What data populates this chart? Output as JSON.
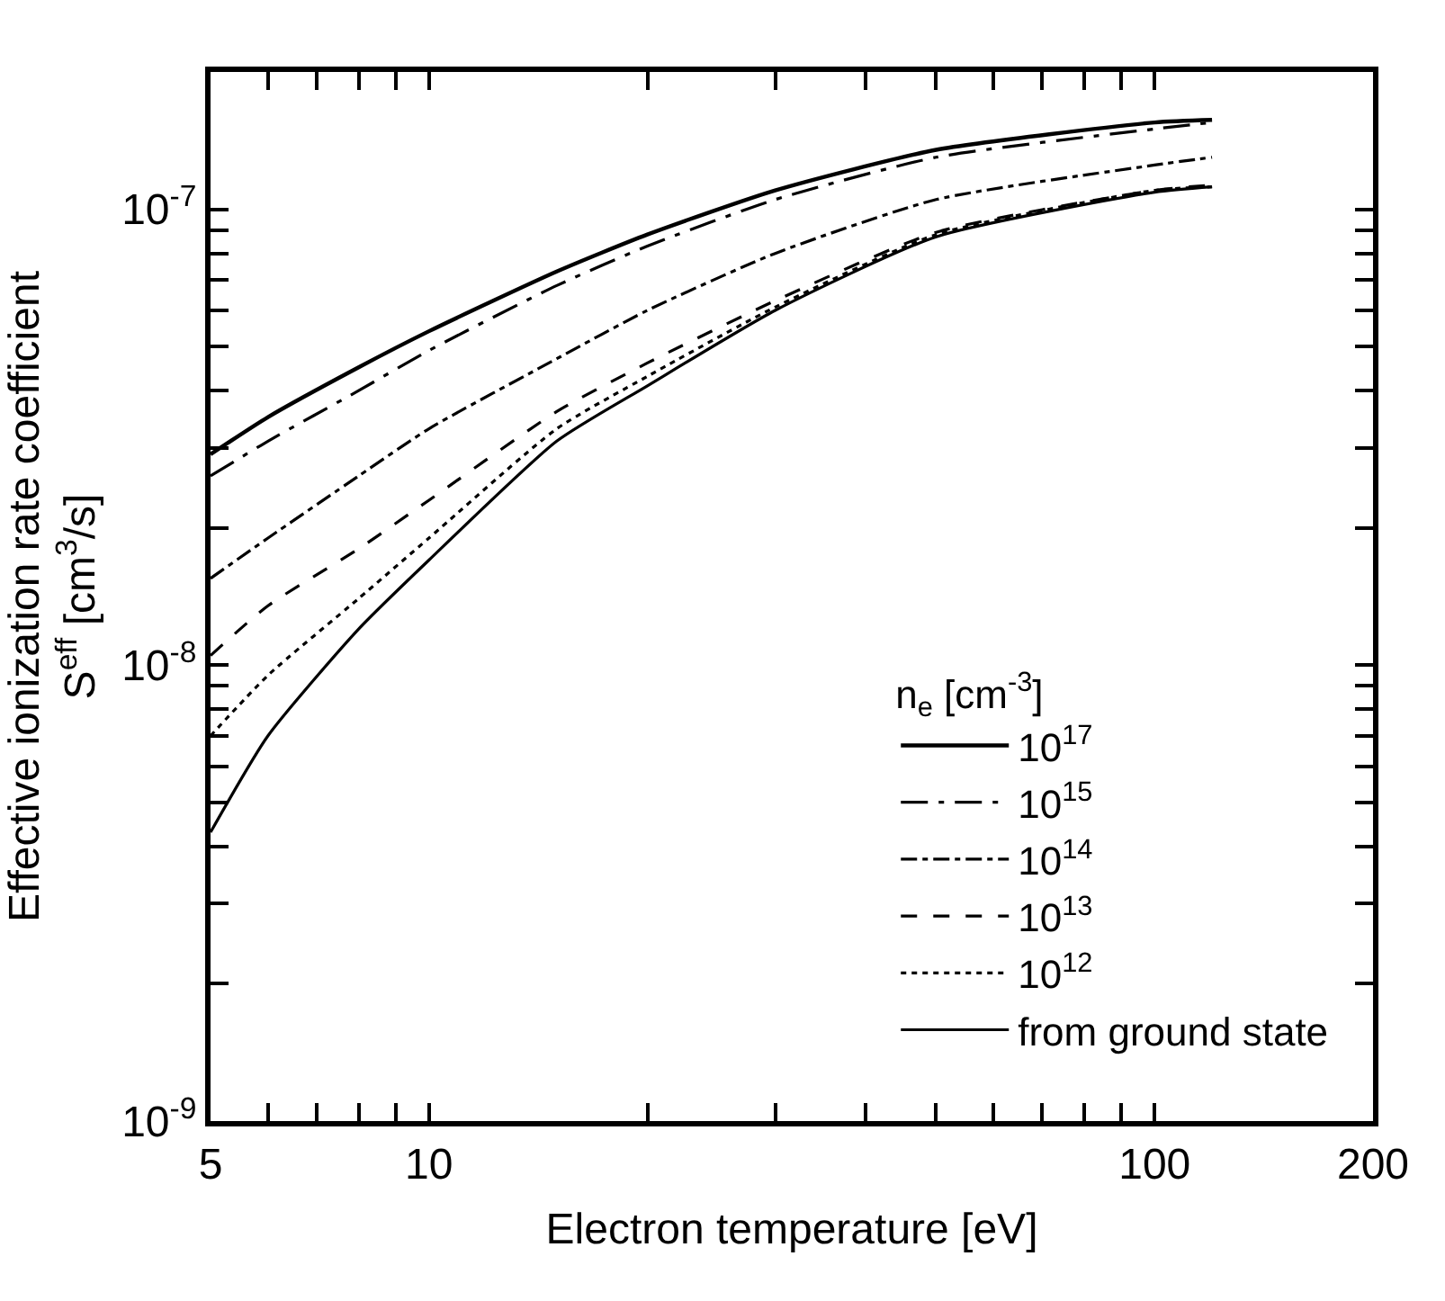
{
  "chart_data": {
    "type": "line",
    "xlabel": "Electron temperature [eV]",
    "ylabel": "Effective ionization rate coefficient\nS$^{eff}$ [cm$^{3}$/s]",
    "legend_title": "n$_{e}$ [cm$^{-3}$]",
    "log": "xy",
    "legend": "bottom right",
    "marker": "none",
    "xlim": [
      5,
      200
    ],
    "ylim": [
      1e-09,
      2e-07
    ],
    "xticks": [
      5,
      {
        "value": 6,
        "label": null
      },
      {
        "value": 7,
        "label": null
      },
      {
        "value": 8,
        "label": null
      },
      {
        "value": 9,
        "label": null
      },
      10,
      {
        "value": 20,
        "label": null
      },
      {
        "value": 30,
        "label": null
      },
      {
        "value": 40,
        "label": null
      },
      {
        "value": 50,
        "label": null
      },
      {
        "value": 60,
        "label": null
      },
      {
        "value": 70,
        "label": null
      },
      {
        "value": 80,
        "label": null
      },
      {
        "value": 90,
        "label": null
      },
      100,
      200
    ],
    "yticks": [
      {
        "value": 1e-09,
        "label": "10$^{-9}$"
      },
      {
        "value": 2e-09,
        "label": null
      },
      {
        "value": 3e-09,
        "label": null
      },
      {
        "value": 4e-09,
        "label": null
      },
      {
        "value": 5e-09,
        "label": null
      },
      {
        "value": 6e-09,
        "label": null
      },
      {
        "value": 7e-09,
        "label": null
      },
      {
        "value": 8e-09,
        "label": null
      },
      {
        "value": 9e-09,
        "label": null
      },
      {
        "value": 1e-08,
        "label": "10$^{-8}$"
      },
      {
        "value": 2e-08,
        "label": null
      },
      {
        "value": 3e-08,
        "label": null
      },
      {
        "value": 4e-08,
        "label": null
      },
      {
        "value": 5e-08,
        "label": null
      },
      {
        "value": 6e-08,
        "label": null
      },
      {
        "value": 7e-08,
        "label": null
      },
      {
        "value": 8e-08,
        "label": null
      },
      {
        "value": 9e-08,
        "label": null
      },
      {
        "value": 1e-07,
        "label": "10$^{-7}$"
      },
      {
        "value": 2e-07,
        "label": null
      }
    ],
    "x": [
      5,
      6,
      8,
      10,
      15,
      20,
      30,
      50,
      100,
      120
    ],
    "series": [
      {
        "name": "10$^{17}$",
        "color": "#000000",
        "line_style": "solid",
        "values": [
          2.9e-08,
          3.5e-08,
          4.5e-08,
          5.4e-08,
          7.3e-08,
          8.8e-08,
          1.1e-07,
          1.35e-07,
          1.55e-07,
          1.57e-07
        ]
      },
      {
        "name": "10$^{15}$",
        "color": "#000000",
        "line_style": "longdashdot",
        "values": [
          2.6e-08,
          3.1e-08,
          4e-08,
          4.9e-08,
          6.8e-08,
          8.3e-08,
          1.05e-07,
          1.3e-07,
          1.5e-07,
          1.55e-07
        ]
      },
      {
        "name": "10$^{14}$",
        "color": "#000000",
        "line_style": "dashdot",
        "values": [
          1.55e-08,
          1.9e-08,
          2.6e-08,
          3.3e-08,
          4.7e-08,
          6e-08,
          8e-08,
          1.05e-07,
          1.25e-07,
          1.3e-07
        ]
      },
      {
        "name": "10$^{13}$",
        "color": "#000000",
        "line_style": "dashed",
        "values": [
          1.05e-08,
          1.35e-08,
          1.8e-08,
          2.3e-08,
          3.6e-08,
          4.6e-08,
          6.3e-08,
          8.9e-08,
          1.1e-07,
          1.13e-07
        ]
      },
      {
        "name": "10$^{12}$",
        "color": "#000000",
        "line_style": "dotted",
        "values": [
          7e-09,
          9.5e-09,
          1.4e-08,
          1.9e-08,
          3.3e-08,
          4.3e-08,
          6.1e-08,
          8.8e-08,
          1.1e-07,
          1.12e-07
        ]
      },
      {
        "name": "from ground state",
        "color": "#000000",
        "line_style": "solid",
        "values": [
          4.3e-09,
          7e-09,
          1.2e-08,
          1.7e-08,
          3.1e-08,
          4.1e-08,
          6e-08,
          8.7e-08,
          1.09e-07,
          1.12e-07
        ]
      }
    ]
  }
}
